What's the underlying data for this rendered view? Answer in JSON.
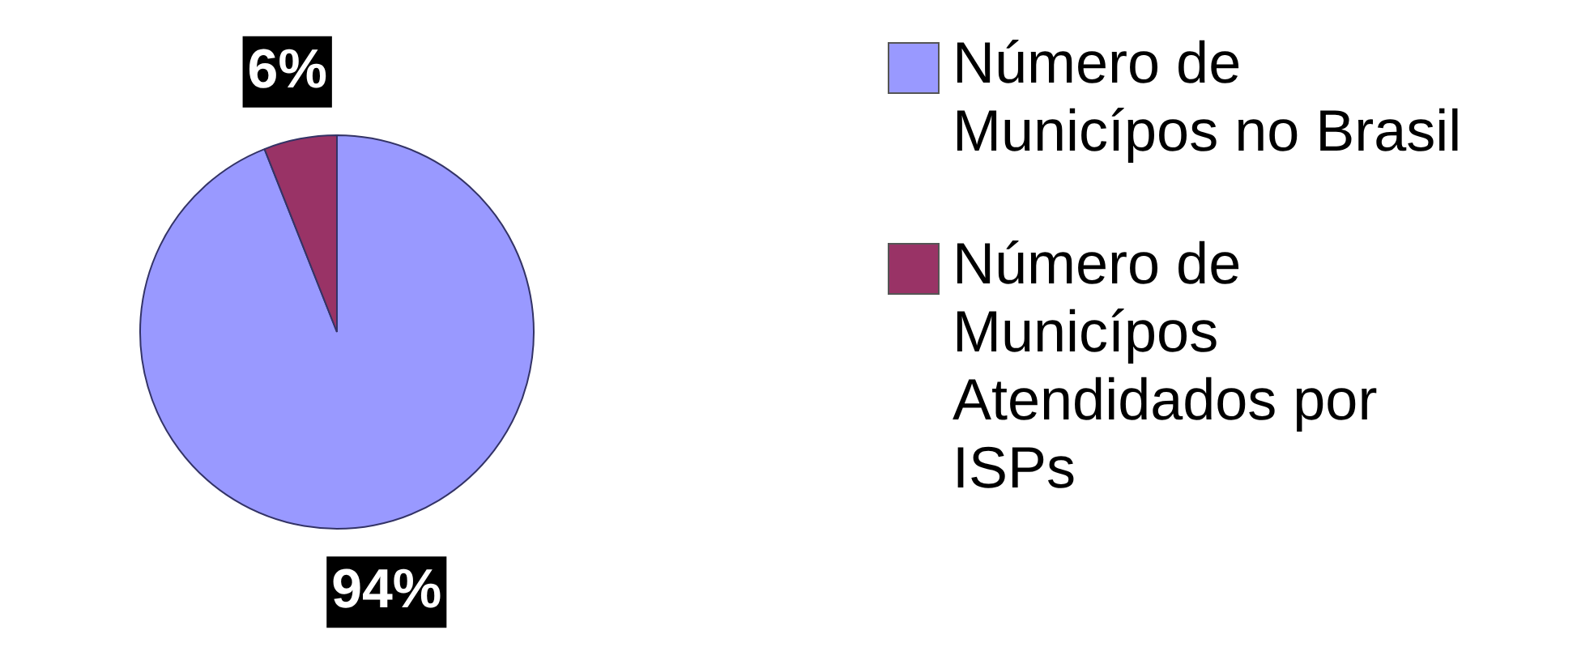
{
  "chart_data": {
    "type": "pie",
    "categories": [
      "Número de Municípos no Brasil",
      "Número de Municípos Atendidados por ISPs"
    ],
    "values": [
      94,
      6
    ],
    "colors": [
      "#9999ff",
      "#993366"
    ],
    "value_labels": [
      "94%",
      "6%"
    ],
    "legend": "right"
  }
}
